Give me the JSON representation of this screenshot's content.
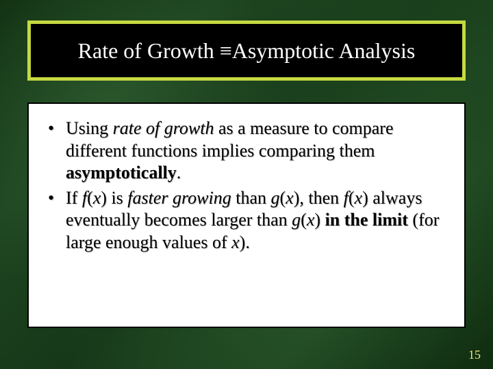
{
  "slide": {
    "title": "Rate of Growth ≡Asymptotic Analysis",
    "title_border_color": "#c6d940",
    "title_bg": "#000000",
    "title_fg": "#ffffff",
    "content_bg": "#ffffff",
    "bullets": [
      {
        "runs": [
          {
            "t": "Using ",
            "i": false,
            "b": false
          },
          {
            "t": "rate of growth",
            "i": true,
            "b": false
          },
          {
            "t": " as a measure to compare different functions implies comparing them ",
            "i": false,
            "b": false
          },
          {
            "t": "asymptotically",
            "i": false,
            "b": true
          },
          {
            "t": ".",
            "i": false,
            "b": false
          }
        ]
      },
      {
        "runs": [
          {
            "t": "If ",
            "i": false,
            "b": false
          },
          {
            "t": "f",
            "i": true,
            "b": false
          },
          {
            "t": "(",
            "i": false,
            "b": false
          },
          {
            "t": "x",
            "i": true,
            "b": false
          },
          {
            "t": ") is ",
            "i": false,
            "b": false
          },
          {
            "t": "faster growing",
            "i": true,
            "b": false
          },
          {
            "t": " than ",
            "i": false,
            "b": false
          },
          {
            "t": "g",
            "i": true,
            "b": false
          },
          {
            "t": "(",
            "i": false,
            "b": false
          },
          {
            "t": "x",
            "i": true,
            "b": false
          },
          {
            "t": "), then ",
            "i": false,
            "b": false
          },
          {
            "t": "f",
            "i": true,
            "b": false
          },
          {
            "t": "(",
            "i": false,
            "b": false
          },
          {
            "t": "x",
            "i": true,
            "b": false
          },
          {
            "t": ") always eventually becomes larger than ",
            "i": false,
            "b": false
          },
          {
            "t": "g",
            "i": true,
            "b": false
          },
          {
            "t": "(",
            "i": false,
            "b": false
          },
          {
            "t": "x",
            "i": true,
            "b": false
          },
          {
            "t": ") ",
            "i": false,
            "b": false
          },
          {
            "t": "in the limit",
            "i": false,
            "b": true
          },
          {
            "t": " (for large enough values of ",
            "i": false,
            "b": false
          },
          {
            "t": "x",
            "i": true,
            "b": false
          },
          {
            "t": ").",
            "i": false,
            "b": false
          }
        ]
      }
    ],
    "page_number": "15",
    "page_number_color": "#f5e27a"
  }
}
